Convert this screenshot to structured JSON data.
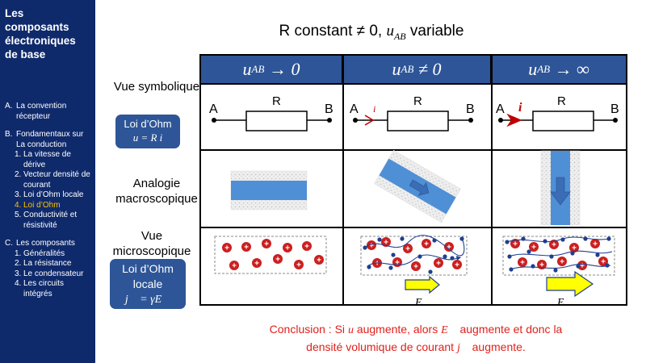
{
  "sidebar": {
    "deck_title": "Les composants électroniques de base",
    "sections": [
      {
        "letter": "A.",
        "label": "La convention récepteur",
        "items": []
      },
      {
        "letter": "B.",
        "label": "Fondamentaux sur La conduction",
        "items": [
          {
            "num": "1.",
            "label": "La vitesse de dérive",
            "active": false
          },
          {
            "num": "2.",
            "label": "Vecteur densité de courant",
            "active": false
          },
          {
            "num": "3.",
            "label": "Loi d’Ohm locale",
            "active": false
          },
          {
            "num": "4.",
            "label": "Loi d’Ohm",
            "active": true
          },
          {
            "num": "5.",
            "label": "Conductivité et résistivité",
            "active": false
          }
        ]
      },
      {
        "letter": "C.",
        "label": "Les composants",
        "items": [
          {
            "num": "1.",
            "label": "Généralités",
            "active": false
          },
          {
            "num": "2.",
            "label": "La résistance",
            "active": false
          },
          {
            "num": "3.",
            "label": "Le condensateur",
            "active": false
          },
          {
            "num": "4.",
            "label": "Les circuits intégrés",
            "active": false
          }
        ]
      }
    ]
  },
  "title": {
    "prefix": "R constant ≠ 0,",
    "var": "u",
    "sub": "AB",
    "suffix": "variable"
  },
  "columns": [
    {
      "var": "u",
      "sub": "AB",
      "rel": "→ 0"
    },
    {
      "var": "u",
      "sub": "AB",
      "rel": "≠ 0"
    },
    {
      "var": "u",
      "sub": "AB",
      "rel": "→ ∞"
    }
  ],
  "rows": {
    "symbolic": {
      "label": "Vue symbolique",
      "box_line1": "Loi d’Ohm",
      "box_line2": "u = R i"
    },
    "macro": {
      "label": "Analogie macroscopique"
    },
    "micro": {
      "label": "Vue microscopique",
      "box_line1": "Loi d’Ohm",
      "box_line2": "locale",
      "box_line3": "j⃗ = γE⃗"
    }
  },
  "circuit": {
    "node_a": "A",
    "node_b": "B",
    "resistor": "R",
    "current": "i"
  },
  "field_label": "E⃗",
  "ion_symbol": "+",
  "colors": {
    "sidebar": "#0f2a6b",
    "header": "#2e5597",
    "active": "#ffc000",
    "ion": "#cc1f1f",
    "electron": "#1f3f8f",
    "arrow": "#ffff00",
    "conclusion": "#e0201b",
    "conductor": "#4f8fd6"
  },
  "conclusion": {
    "line1_a": "Conclusion : Si",
    "line1_u": "u",
    "line1_b": "augmente, alors",
    "line1_E": "E⃗",
    "line1_c": "augmente et donc la",
    "line2_a": "densité volumique de courant",
    "line2_j": "j⃗",
    "line2_b": "augmente."
  }
}
